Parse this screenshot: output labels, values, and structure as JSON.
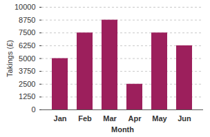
{
  "chart_data": {
    "type": "bar",
    "categories": [
      "Jan",
      "Feb",
      "Mar",
      "Apr",
      "May",
      "Jun"
    ],
    "values": [
      5000,
      7500,
      8750,
      2500,
      7500,
      6250
    ],
    "color": "#9c1f5c",
    "x_label": "Month",
    "y_label": "Takings (£)",
    "ylim": [
      0,
      10000
    ],
    "yticks": [
      0,
      1250,
      2500,
      3750,
      5000,
      6250,
      7500,
      8750,
      10000
    ],
    "grid": true
  }
}
